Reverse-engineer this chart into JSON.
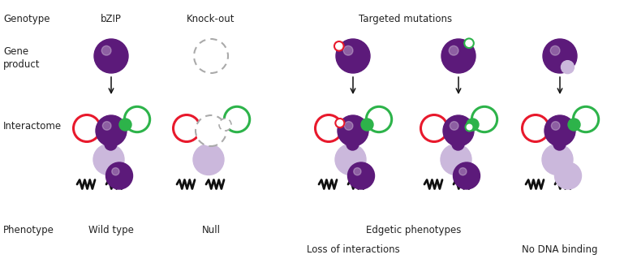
{
  "bg_color": "#ffffff",
  "purple_dark": "#5c1a7a",
  "purple_light": "#cbb8dc",
  "purple_mid": "#9b6bb5",
  "red_color": "#e8192c",
  "green_color": "#2db34a",
  "gray_dashed": "#aaaaaa",
  "black": "#111111",
  "text_color": "#222222",
  "labels": {
    "genotype": "Genotype",
    "gene_product": "Gene\nproduct",
    "interactome": "Interactome",
    "phenotype": "Phenotype",
    "bzip": "bZIP",
    "knockout": "Knock-out",
    "targeted": "Targeted mutations",
    "wildtype": "Wild type",
    "null": "Null",
    "edgetic": "Edgetic phenotypes",
    "loss": "Loss of interactions",
    "no_dna": "No DNA binding"
  }
}
